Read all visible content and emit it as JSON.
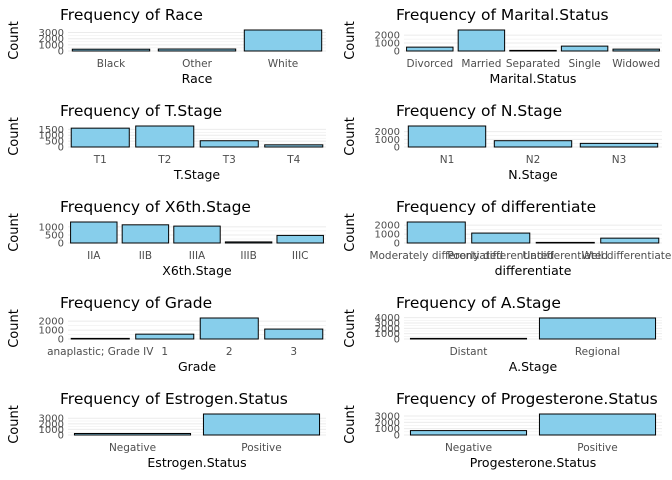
{
  "chart_data": [
    {
      "type": "bar",
      "title": "Frequency of Race",
      "xlabel": "Race",
      "ylabel": "Count",
      "categories": [
        "Black",
        "Other",
        "White"
      ],
      "values": [
        291,
        320,
        3413
      ],
      "yticks": [
        0,
        1000,
        2000,
        3000
      ],
      "ylim": [
        0,
        3413
      ]
    },
    {
      "type": "bar",
      "title": "Frequency of Marital.Status",
      "xlabel": "Marital.Status",
      "ylabel": "Count",
      "categories": [
        "Divorced",
        "Married",
        "Separated",
        "Single",
        "Widowed"
      ],
      "values": [
        486,
        2643,
        45,
        615,
        235
      ],
      "yticks": [
        0,
        1000,
        2000
      ],
      "ylim": [
        0,
        2643
      ]
    },
    {
      "type": "bar",
      "title": "Frequency of T.Stage",
      "xlabel": "T.Stage",
      "ylabel": "Count",
      "categories": [
        "T1",
        "T2",
        "T3",
        "T4"
      ],
      "values": [
        1603,
        1786,
        533,
        184
      ],
      "yticks": [
        0,
        500,
        1000,
        1500
      ],
      "ylim": [
        0,
        1786
      ]
    },
    {
      "type": "bar",
      "title": "Frequency of N.Stage",
      "xlabel": "N.Stage",
      "ylabel": "Count",
      "categories": [
        "N1",
        "N2",
        "N3"
      ],
      "values": [
        2732,
        820,
        472
      ],
      "yticks": [
        0,
        1000,
        2000
      ],
      "ylim": [
        0,
        2732
      ]
    },
    {
      "type": "bar",
      "title": "Frequency of X6th.Stage",
      "xlabel": "X6th.Stage",
      "ylabel": "Count",
      "categories": [
        "IIA",
        "IIB",
        "IIIA",
        "IIIB",
        "IIIC"
      ],
      "values": [
        1305,
        1130,
        1050,
        67,
        472
      ],
      "yticks": [
        0,
        500,
        1000
      ],
      "ylim": [
        0,
        1305
      ]
    },
    {
      "type": "bar",
      "title": "Frequency of differentiate",
      "xlabel": "differentiate",
      "ylabel": "Count",
      "categories": [
        "Moderately differentiated",
        "Poorly differentiated",
        "Undifferentiated",
        "Well differentiated"
      ],
      "values": [
        2351,
        1111,
        19,
        543
      ],
      "yticks": [
        0,
        1000,
        2000
      ],
      "ylim": [
        0,
        2351
      ]
    },
    {
      "type": "bar",
      "title": "Frequency of Grade",
      "xlabel": "Grade",
      "ylabel": "Count",
      "categories": [
        " anaplastic; Grade IV",
        "1",
        "2",
        "3"
      ],
      "values": [
        19,
        543,
        2351,
        1111
      ],
      "yticks": [
        0,
        1000,
        2000
      ],
      "ylim": [
        0,
        2351
      ]
    },
    {
      "type": "bar",
      "title": "Frequency of A.Stage",
      "xlabel": "A.Stage",
      "ylabel": "Count",
      "categories": [
        "Distant",
        "Regional"
      ],
      "values": [
        92,
        3932
      ],
      "yticks": [
        0,
        1000,
        2000,
        3000,
        4000
      ],
      "ylim": [
        0,
        3932
      ]
    },
    {
      "type": "bar",
      "title": "Frequency of Estrogen.Status",
      "xlabel": "Estrogen.Status",
      "ylabel": "Count",
      "categories": [
        "Negative",
        "Positive"
      ],
      "values": [
        269,
        3755
      ],
      "yticks": [
        0,
        1000,
        2000,
        3000
      ],
      "ylim": [
        0,
        3755
      ]
    },
    {
      "type": "bar",
      "title": "Frequency of Progesterone.Status",
      "xlabel": "Progesterone.Status",
      "ylabel": "Count",
      "categories": [
        "Negative",
        "Positive"
      ],
      "values": [
        698,
        3326
      ],
      "yticks": [
        0,
        1000,
        2000,
        3000
      ],
      "ylim": [
        0,
        3326
      ]
    }
  ],
  "style": {
    "bar_fill": "#87CEEB",
    "bar_stroke": "#000000",
    "grid_color": "#EBEBEB",
    "tick_color": "#4D4D4D"
  }
}
